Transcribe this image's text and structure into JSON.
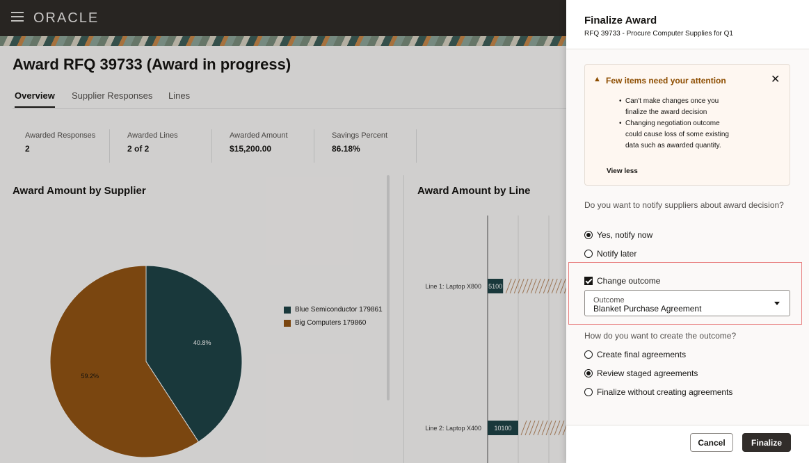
{
  "header": {
    "logo": "ORACLE"
  },
  "page": {
    "title": "Award RFQ 39733 (Award in progress)",
    "tabs": [
      {
        "label": "Overview",
        "active": true
      },
      {
        "label": "Supplier Responses",
        "active": false
      },
      {
        "label": "Lines",
        "active": false
      }
    ],
    "metrics": [
      {
        "label": "Awarded Responses",
        "value": "2"
      },
      {
        "label": "Awarded Lines",
        "value": "2 of 2"
      },
      {
        "label": "Awarded Amount",
        "value": "$15,200.00"
      },
      {
        "label": "Savings Percent",
        "value": "86.18%"
      }
    ]
  },
  "chart_data": [
    {
      "type": "pie",
      "title": "Award Amount by Supplier",
      "categories": [
        "Blue Semiconductor 179861",
        "Big Computers 179860"
      ],
      "values": [
        40.8,
        59.2
      ],
      "labels": [
        "40.8%",
        "59.2%"
      ],
      "colors": [
        "#1f4447",
        "#935514"
      ],
      "legend": "right"
    },
    {
      "type": "bar",
      "title": "Award Amount by Line",
      "categories": [
        "Line 1: Laptop X800",
        "Line 2: Laptop X400"
      ],
      "values": [
        5100,
        10100
      ],
      "labels": [
        "5100",
        "10100"
      ],
      "color": "#1f4447"
    }
  ],
  "drawer": {
    "title": "Finalize Award",
    "subtitle": "RFQ 39733 - Procure Computer Supplies for Q1",
    "alert": {
      "title": "Few items need your attention",
      "items": [
        "Can't make changes once you finalize the award decision",
        "Changing negotiation outcome could cause loss of some existing data such as awarded quantity."
      ],
      "view_less": "View less"
    },
    "notify": {
      "question": "Do you want to notify suppliers about award decision?",
      "options": [
        {
          "label": "Yes, notify now",
          "selected": true
        },
        {
          "label": "Notify later",
          "selected": false
        }
      ]
    },
    "change_outcome": {
      "label": "Change outcome",
      "checked": true,
      "select_label": "Outcome",
      "select_value": "Blanket Purchase Agreement"
    },
    "create": {
      "question": "How do you want to create the outcome?",
      "options": [
        {
          "label": "Create final agreements",
          "selected": false
        },
        {
          "label": "Review staged agreements",
          "selected": true
        },
        {
          "label": "Finalize without creating agreements",
          "selected": false
        }
      ]
    },
    "buttons": {
      "cancel": "Cancel",
      "finalize": "Finalize"
    }
  }
}
